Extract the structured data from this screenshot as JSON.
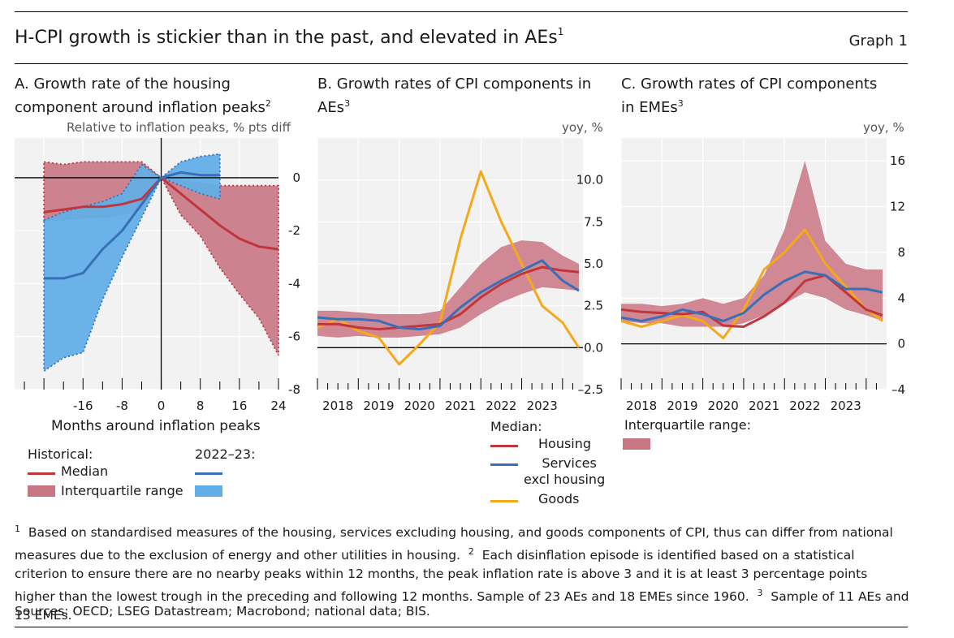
{
  "header": {
    "title": "H-CPI growth is stickier than in the past, and elevated in AEs",
    "title_note": "1",
    "graph_label": "Graph 1"
  },
  "colors": {
    "housing_red": "#c0363c",
    "band_red": "#c97684",
    "services_blue": "#3a6fb7",
    "band_blue": "#62aee6",
    "goods_orange": "#f4a91a",
    "panel_bg": "#f2f2f2",
    "grid": "#ffffff"
  },
  "panels": {
    "a": {
      "title_line1": "A. Growth rate of the housing",
      "title_line2": "component around inflation peaks",
      "title_note": "2",
      "unit": "Relative to inflation peaks, % pts diff",
      "xlabel": "Months around inflation peaks",
      "legend": {
        "historical_label": "Historical:",
        "recent_label": "2022–23:",
        "median_label": "Median",
        "iqr_label": "Interquartile range"
      }
    },
    "b": {
      "title_line1": "B. Growth rates of CPI components in",
      "title_line2": "AEs",
      "title_note": "3",
      "unit": "yoy, %",
      "legend": {
        "header": "Median:",
        "housing": "Housing",
        "services_line1": "Services",
        "services_line2": "excl housing",
        "goods": "Goods"
      }
    },
    "c": {
      "title_line1": "C. Growth rates of CPI components",
      "title_line2": "in EMEs",
      "title_note": "3",
      "unit": "yoy, %",
      "legend": {
        "header": "Interquartile range:"
      }
    }
  },
  "chart_data": [
    {
      "panel": "A",
      "type": "line",
      "xlim": [
        -30,
        24
      ],
      "ylim": [
        -8,
        1.5
      ],
      "x_ticks": [
        -16,
        -8,
        0,
        8,
        16,
        24
      ],
      "y_ticks": [
        0,
        -2,
        -4,
        -6,
        -8
      ],
      "x": [
        -24,
        -20,
        -16,
        -12,
        -8,
        -4,
        0,
        4,
        8,
        12,
        16,
        20,
        24
      ],
      "series": [
        {
          "name": "Historical median",
          "values": [
            -1.3,
            -1.2,
            -1.1,
            -1.1,
            -1.0,
            -0.8,
            0.0,
            -0.6,
            -1.2,
            -1.8,
            -2.3,
            -2.6,
            -2.7
          ]
        },
        {
          "name": "Historical interquartile range low",
          "values": [
            -1.6,
            -1.6,
            -1.5,
            -1.5,
            -1.4,
            -1.2,
            0.0,
            -1.4,
            -2.2,
            -3.4,
            -4.4,
            -5.3,
            -6.7
          ]
        },
        {
          "name": "Historical interquartile range high",
          "values": [
            0.6,
            0.5,
            0.6,
            0.6,
            0.6,
            0.6,
            0.0,
            -0.1,
            -0.2,
            -0.3,
            -0.3,
            -0.3,
            -0.3
          ]
        },
        {
          "name": "2022–23 median",
          "values": [
            -3.8,
            -3.8,
            -3.6,
            -2.7,
            -2.0,
            -1.0,
            0.0,
            0.2,
            0.1,
            0.1,
            null,
            null,
            null
          ]
        },
        {
          "name": "2022–23 interquartile range low",
          "values": [
            -7.3,
            -6.8,
            -6.6,
            -4.6,
            -3.0,
            -1.5,
            0.0,
            -0.3,
            -0.6,
            -0.8,
            null,
            null,
            null
          ]
        },
        {
          "name": "2022–23 interquartile range high",
          "values": [
            -1.6,
            -1.3,
            -1.1,
            -0.9,
            -0.6,
            0.5,
            0.0,
            0.6,
            0.8,
            0.9,
            null,
            null,
            null
          ]
        }
      ]
    },
    {
      "panel": "B",
      "type": "line",
      "xlim": [
        2018.0,
        2024.5
      ],
      "ylim": [
        -2.5,
        12.5
      ],
      "x_ticks": [
        "2018",
        "2019",
        "2020",
        "2021",
        "2022",
        "2023"
      ],
      "y_ticks": [
        "10.0",
        "7.5",
        "5.0",
        "2.5",
        "0.0",
        "–2.5"
      ],
      "x": [
        2018.0,
        2018.5,
        2019.0,
        2019.5,
        2020.0,
        2020.5,
        2021.0,
        2021.5,
        2022.0,
        2022.5,
        2023.0,
        2023.5,
        2024.0,
        2024.4
      ],
      "series": [
        {
          "name": "Housing",
          "values": [
            1.4,
            1.4,
            1.2,
            1.1,
            1.2,
            1.3,
            1.4,
            2.0,
            3.0,
            3.8,
            4.4,
            4.8,
            4.6,
            4.5
          ]
        },
        {
          "name": "Services excl housing",
          "values": [
            1.8,
            1.7,
            1.7,
            1.6,
            1.2,
            1.1,
            1.3,
            2.4,
            3.3,
            4.0,
            4.6,
            5.2,
            4.0,
            3.4
          ]
        },
        {
          "name": "Goods",
          "values": [
            1.2,
            1.7,
            1.0,
            0.6,
            -1.0,
            0.2,
            1.5,
            6.5,
            10.5,
            7.5,
            5.0,
            2.5,
            1.5,
            0.0
          ]
        },
        {
          "name": "Interquartile range low",
          "values": [
            0.7,
            0.6,
            0.7,
            0.6,
            0.6,
            0.7,
            0.8,
            1.2,
            2.0,
            2.7,
            3.2,
            3.6,
            3.5,
            3.4
          ]
        },
        {
          "name": "Interquartile range high",
          "values": [
            2.2,
            2.2,
            2.1,
            2.0,
            2.0,
            2.0,
            2.2,
            3.6,
            5.0,
            6.0,
            6.4,
            6.3,
            5.5,
            5.0
          ]
        }
      ]
    },
    {
      "panel": "C",
      "type": "line",
      "xlim": [
        2018.0,
        2024.5
      ],
      "ylim": [
        -4,
        18
      ],
      "x_ticks": [
        "2018",
        "2019",
        "2020",
        "2021",
        "2022",
        "2023"
      ],
      "y_ticks": [
        "16",
        "12",
        "8",
        "4",
        "0",
        "–4"
      ],
      "x": [
        2018.0,
        2018.5,
        2019.0,
        2019.5,
        2020.0,
        2020.5,
        2021.0,
        2021.5,
        2022.0,
        2022.5,
        2023.0,
        2023.5,
        2024.0,
        2024.4
      ],
      "series": [
        {
          "name": "Housing",
          "values": [
            3.0,
            2.8,
            2.7,
            2.6,
            2.8,
            1.6,
            1.5,
            2.4,
            3.6,
            5.5,
            6.0,
            4.5,
            3.0,
            2.5
          ]
        },
        {
          "name": "Services excl housing",
          "values": [
            2.3,
            2.0,
            2.4,
            3.0,
            2.6,
            2.0,
            2.7,
            4.3,
            5.5,
            6.3,
            6.0,
            4.8,
            4.8,
            4.5
          ]
        },
        {
          "name": "Goods",
          "values": [
            2.0,
            1.5,
            2.0,
            2.5,
            2.0,
            0.5,
            3.0,
            6.5,
            8.0,
            10.0,
            7.0,
            5.0,
            3.0,
            2.0
          ]
        },
        {
          "name": "Interquartile range low",
          "values": [
            2.0,
            1.8,
            1.8,
            1.5,
            1.5,
            1.5,
            1.8,
            2.5,
            3.5,
            4.5,
            4.0,
            3.0,
            2.5,
            2.0
          ]
        },
        {
          "name": "Interquartile range high",
          "values": [
            3.5,
            3.5,
            3.3,
            3.5,
            4.0,
            3.5,
            4.0,
            6.0,
            10.0,
            16.0,
            9.0,
            7.0,
            6.5,
            6.5
          ]
        }
      ]
    }
  ],
  "footnotes": {
    "n1_mark": "1",
    "n1": "Based on standardised measures of the housing, services excluding housing, and goods components of CPI, thus can differ from national measures due to the exclusion of energy and other utilities in housing.",
    "n2_mark": "2",
    "n2": "Each disinflation episode is identified based on a statistical criterion to ensure there are no nearby peaks within 12 months, the peak inflation rate is above 3 and it is at least 3 percentage points higher than the lowest trough in the preceding and following 12 months. Sample of 23 AEs and 18 EMEs since 1960.",
    "n3_mark": "3",
    "n3": "Sample of 11 AEs and 13 EMEs."
  },
  "sources": "Sources: OECD; LSEG Datastream; Macrobond; national data; BIS."
}
